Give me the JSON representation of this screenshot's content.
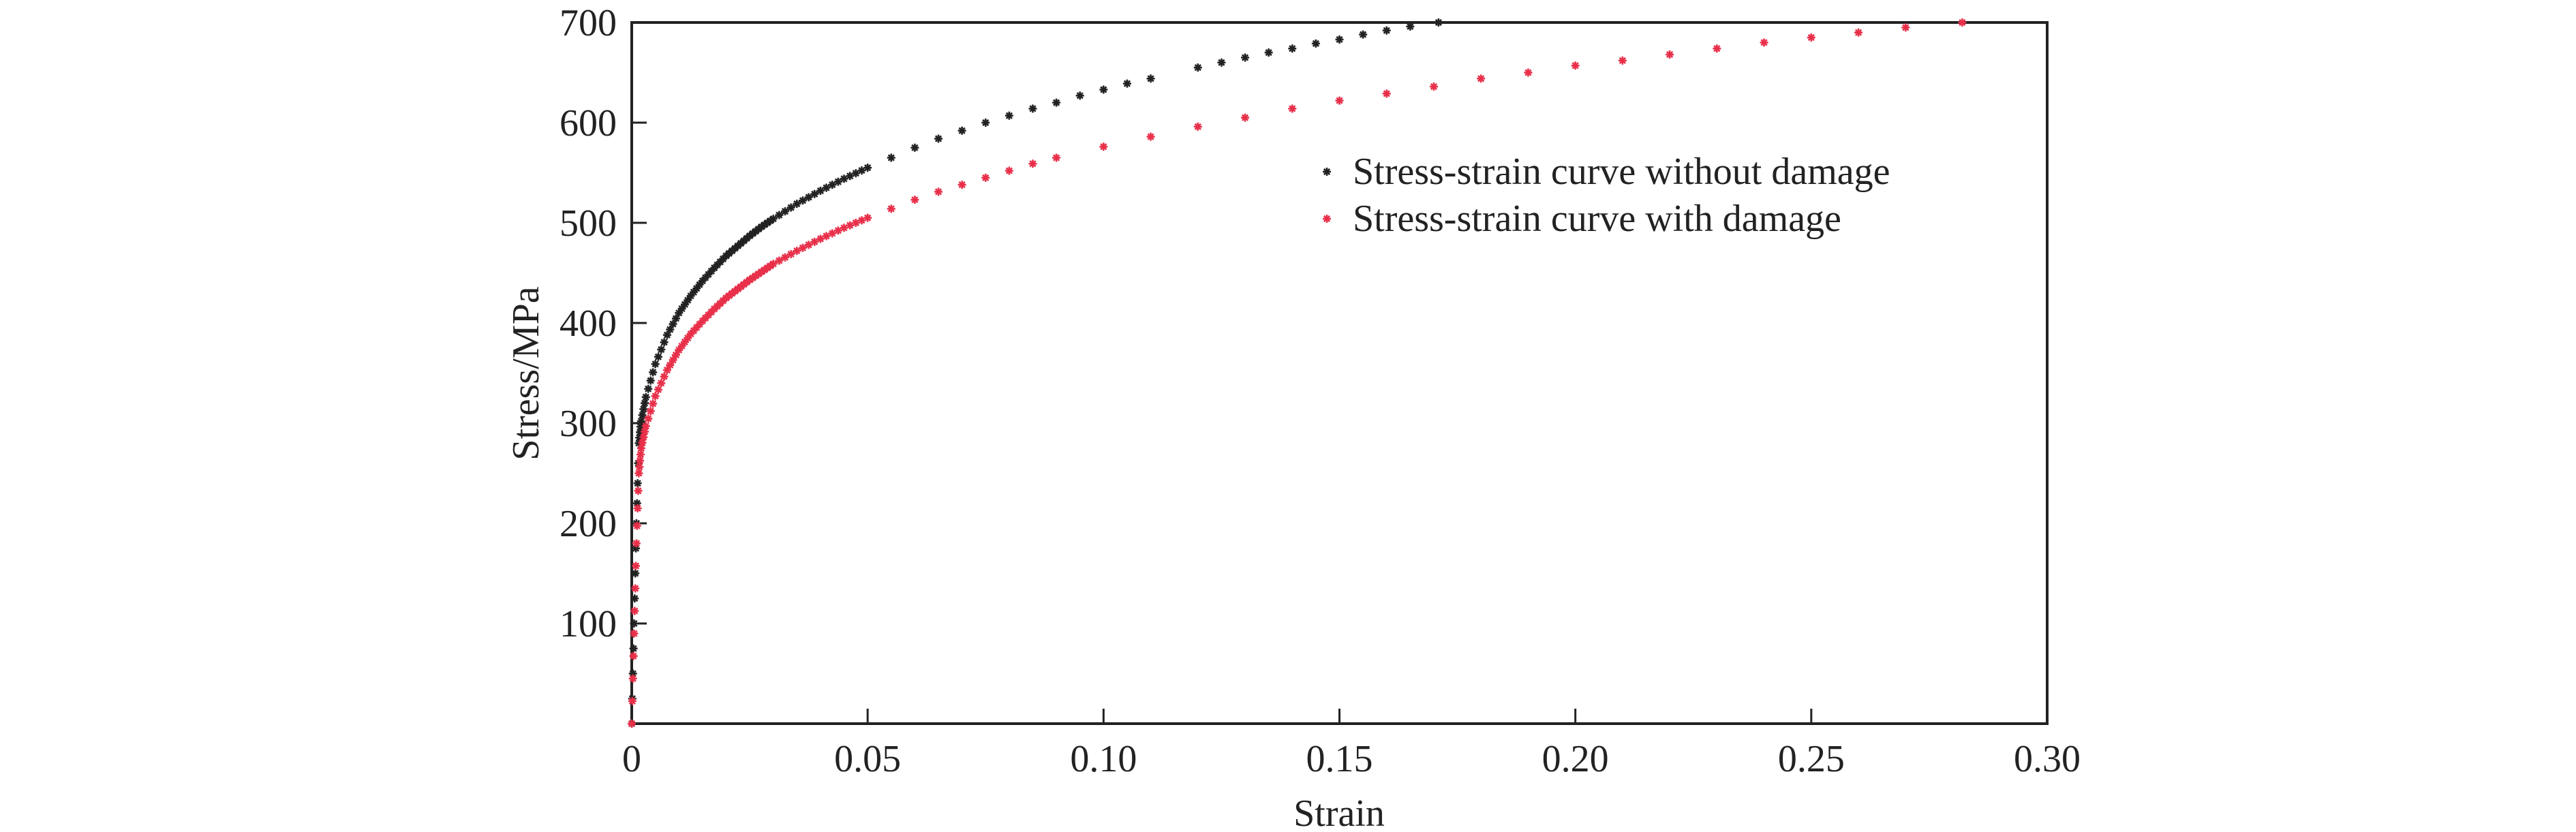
{
  "chart_data": {
    "type": "scatter",
    "title": "",
    "xlabel": "Strain",
    "ylabel": "Stress/MPa",
    "xlim": [
      0,
      0.3
    ],
    "ylim": [
      0,
      700
    ],
    "xticks": [
      0,
      0.05,
      0.1,
      0.15,
      0.2,
      0.25,
      0.3
    ],
    "xtick_labels": [
      "0",
      "0.05",
      "0.10",
      "0.15",
      "0.20",
      "0.25",
      "0.30"
    ],
    "yticks": [
      100,
      200,
      300,
      400,
      500,
      600,
      700
    ],
    "ytick_labels": [
      "100",
      "200",
      "300",
      "400",
      "500",
      "600",
      "700"
    ],
    "grid": false,
    "legend_placement": "upper-right (inside)",
    "series": [
      {
        "name": "Stress-strain curve without damage",
        "color": "#222222",
        "marker": "asterisk",
        "points": [
          [
            0,
            0
          ],
          [
            0.0005,
            100
          ],
          [
            0.001,
            200
          ],
          [
            0.0015,
            280
          ],
          [
            0.002,
            302
          ],
          [
            0.003,
            326
          ],
          [
            0.005,
            359
          ],
          [
            0.0075,
            388
          ],
          [
            0.01,
            410
          ],
          [
            0.0125,
            427
          ],
          [
            0.015,
            442
          ],
          [
            0.0175,
            455
          ],
          [
            0.02,
            467
          ],
          [
            0.0225,
            477
          ],
          [
            0.025,
            487
          ],
          [
            0.0275,
            496
          ],
          [
            0.03,
            504
          ],
          [
            0.035,
            519
          ],
          [
            0.04,
            532
          ],
          [
            0.045,
            544
          ],
          [
            0.05,
            555
          ],
          [
            0.055,
            565
          ],
          [
            0.06,
            575
          ],
          [
            0.065,
            584
          ],
          [
            0.07,
            592
          ],
          [
            0.075,
            600
          ],
          [
            0.08,
            607
          ],
          [
            0.085,
            614
          ],
          [
            0.09,
            620
          ],
          [
            0.095,
            627
          ],
          [
            0.1,
            633
          ],
          [
            0.105,
            639
          ],
          [
            0.11,
            644
          ],
          [
            0.12,
            655
          ],
          [
            0.125,
            660
          ],
          [
            0.13,
            665
          ],
          [
            0.135,
            670
          ],
          [
            0.14,
            674
          ],
          [
            0.145,
            679
          ],
          [
            0.15,
            683
          ],
          [
            0.155,
            688
          ],
          [
            0.16,
            692
          ],
          [
            0.165,
            696
          ],
          [
            0.171,
            700
          ]
        ]
      },
      {
        "name": "Stress-strain curve with damage",
        "color": "#e8304a",
        "marker": "asterisk",
        "points": [
          [
            0,
            0
          ],
          [
            0.0005,
            90
          ],
          [
            0.001,
            180
          ],
          [
            0.0015,
            250
          ],
          [
            0.002,
            275
          ],
          [
            0.003,
            297
          ],
          [
            0.005,
            327
          ],
          [
            0.0075,
            353
          ],
          [
            0.01,
            373
          ],
          [
            0.0125,
            389
          ],
          [
            0.015,
            402
          ],
          [
            0.0175,
            414
          ],
          [
            0.02,
            425
          ],
          [
            0.0225,
            434
          ],
          [
            0.025,
            443
          ],
          [
            0.0275,
            451
          ],
          [
            0.03,
            459
          ],
          [
            0.035,
            472
          ],
          [
            0.04,
            484
          ],
          [
            0.045,
            495
          ],
          [
            0.05,
            505
          ],
          [
            0.055,
            514
          ],
          [
            0.06,
            523
          ],
          [
            0.065,
            531
          ],
          [
            0.07,
            538
          ],
          [
            0.075,
            545
          ],
          [
            0.08,
            552
          ],
          [
            0.085,
            559
          ],
          [
            0.09,
            565
          ],
          [
            0.1,
            576
          ],
          [
            0.11,
            586
          ],
          [
            0.12,
            596
          ],
          [
            0.13,
            605
          ],
          [
            0.14,
            614
          ],
          [
            0.15,
            622
          ],
          [
            0.16,
            629
          ],
          [
            0.17,
            636
          ],
          [
            0.18,
            644
          ],
          [
            0.19,
            650
          ],
          [
            0.2,
            657
          ],
          [
            0.21,
            662
          ],
          [
            0.22,
            668
          ],
          [
            0.23,
            674
          ],
          [
            0.24,
            680
          ],
          [
            0.25,
            685
          ],
          [
            0.26,
            690
          ],
          [
            0.27,
            695
          ],
          [
            0.282,
            700
          ]
        ]
      }
    ]
  }
}
